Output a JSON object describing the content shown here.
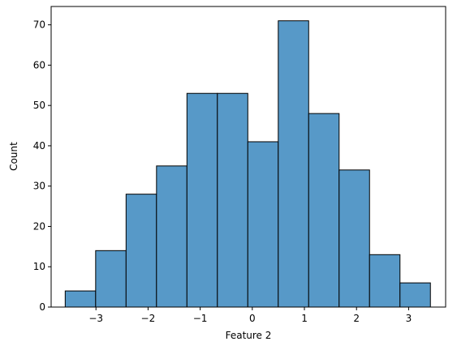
{
  "chart_data": {
    "type": "histogram",
    "xlabel": "Feature 2",
    "ylabel": "Count",
    "bins": [
      -3.59,
      -3.006,
      -2.422,
      -1.838,
      -1.254,
      -0.67,
      -0.086,
      0.498,
      1.082,
      1.666,
      2.25,
      2.834,
      3.418
    ],
    "counts": [
      4,
      14,
      28,
      35,
      53,
      53,
      41,
      71,
      48,
      34,
      13,
      6
    ],
    "color": "#5799c8",
    "xlim": [
      -3.86,
      3.71
    ],
    "xticks": [
      {
        "value": -3,
        "label": "−3"
      },
      {
        "value": -2,
        "label": "−2"
      },
      {
        "value": -1,
        "label": "−1"
      },
      0,
      1,
      2,
      3
    ],
    "ylim": [
      0,
      74.55
    ],
    "yticks": [
      0,
      10,
      20,
      30,
      40,
      50,
      60,
      70
    ]
  }
}
